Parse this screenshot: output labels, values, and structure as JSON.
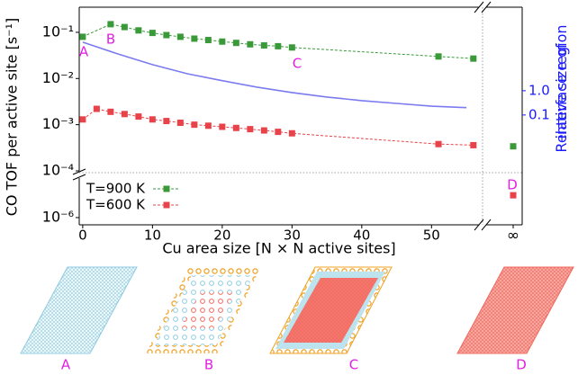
{
  "chart_data": {
    "type": "line",
    "ylabel": "CO TOF per active site [s⁻¹]",
    "xlabel": "Cu area size [N × N active sites]",
    "y2label": "Relative size of\ninterface region",
    "xlim": [
      -0.5,
      56.8
    ],
    "xticks": [
      0,
      10,
      20,
      30,
      40,
      50
    ],
    "inf_tick": "∞",
    "ylim": [
      0.0001,
      0.35
    ],
    "yticks": [
      {
        "value": 0.0001,
        "label": "10⁻⁴"
      },
      {
        "value": 0.001,
        "label": "10⁻³"
      },
      {
        "value": 0.01,
        "label": "10⁻²"
      },
      {
        "value": 0.1,
        "label": "10⁻¹"
      }
    ],
    "lower_ylim": [
      7e-07,
      7e-06
    ],
    "lower_yticks": [
      {
        "value": 1e-06,
        "label": "10⁻⁶"
      }
    ],
    "y2lim": [
      0.0005,
      2750
    ],
    "y2ticks": [
      {
        "value": 0.1,
        "label": "0.1"
      },
      {
        "value": 1,
        "label": "1.0"
      }
    ],
    "log_scale": true,
    "series": [
      {
        "name": "T=900 K",
        "color": "#3a9a3a",
        "x": [
          0,
          4,
          6,
          8,
          10,
          12,
          14,
          16,
          18,
          20,
          22,
          24,
          26,
          28,
          30,
          51,
          56
        ],
        "values": [
          0.08,
          0.15,
          0.13,
          0.11,
          0.097,
          0.087,
          0.08,
          0.073,
          0.068,
          0.063,
          0.059,
          0.055,
          0.052,
          0.05,
          0.047,
          0.03,
          0.027
        ],
        "inf_value": 0.00034
      },
      {
        "name": "T=600 K",
        "color": "#e8434a",
        "x": [
          0,
          2,
          4,
          6,
          8,
          10,
          12,
          14,
          16,
          18,
          20,
          22,
          24,
          26,
          28,
          30,
          51,
          56
        ],
        "values": [
          0.0013,
          0.0022,
          0.0019,
          0.0017,
          0.0015,
          0.0013,
          0.0012,
          0.0011,
          0.001,
          0.00095,
          0.0009,
          0.00085,
          0.0008,
          0.00075,
          0.0007,
          0.00065,
          0.00038,
          0.00036
        ],
        "inf_value": 3e-06
      },
      {
        "color": "#7b7bef",
        "axis": "y2",
        "x": [
          0,
          5,
          10,
          15,
          20,
          25,
          30,
          35,
          40,
          45,
          50,
          55
        ],
        "values": [
          100,
          33,
          11.8,
          5,
          2.6,
          1.4,
          0.84,
          0.55,
          0.39,
          0.3,
          0.23,
          0.2
        ]
      }
    ],
    "annotations": [
      "A",
      "B",
      "C",
      "D"
    ],
    "panel_labels": [
      "A",
      "B",
      "C",
      "D"
    ]
  }
}
